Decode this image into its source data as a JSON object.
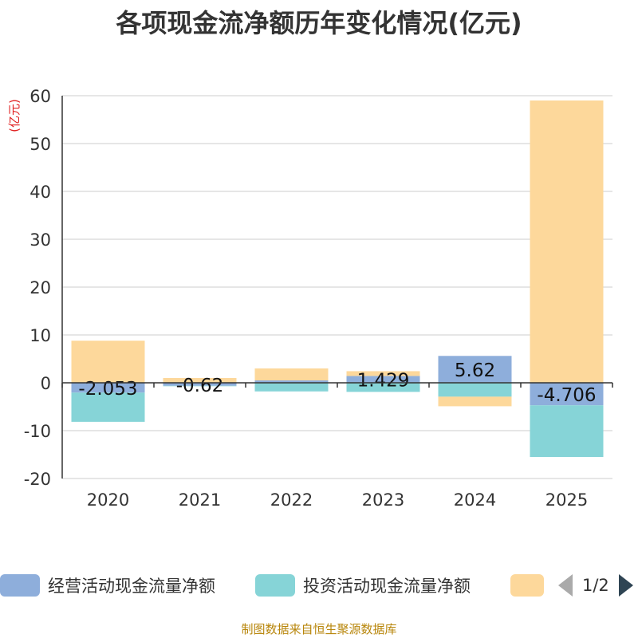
{
  "chart_data": {
    "type": "bar",
    "stacked": true,
    "title": "各项现金流净额历年变化情况(亿元)",
    "ylabel": "(亿元)",
    "xlabel": "",
    "ylim": [
      -20,
      60
    ],
    "yticks": [
      60,
      50,
      40,
      30,
      20,
      10,
      0,
      -10,
      -20
    ],
    "categories": [
      "2020",
      "2021",
      "2022",
      "2023",
      "2024",
      "2025"
    ],
    "series": [
      {
        "name": "经营活动现金流量净额",
        "color": "#8eaedb",
        "values": [
          -2.053,
          -0.62,
          0.5,
          1.429,
          5.62,
          -4.706
        ],
        "labels": [
          "-2.053",
          "-0.62",
          "",
          "1.429",
          "5.62",
          "-4.706"
        ]
      },
      {
        "name": "投资活动现金流量净额",
        "color": "#86d4d7",
        "values": [
          -6.1,
          -0.1,
          -1.8,
          -1.9,
          -2.9,
          -10.8
        ]
      },
      {
        "name": "",
        "color": "#fdd89b",
        "values": [
          8.8,
          1.0,
          2.5,
          1.0,
          -2.0,
          59.0
        ]
      }
    ],
    "legend_position": "bottom",
    "gridlines": true
  },
  "pager": {
    "text": "1/2"
  },
  "source": "制图数据来自恒生聚源数据库"
}
